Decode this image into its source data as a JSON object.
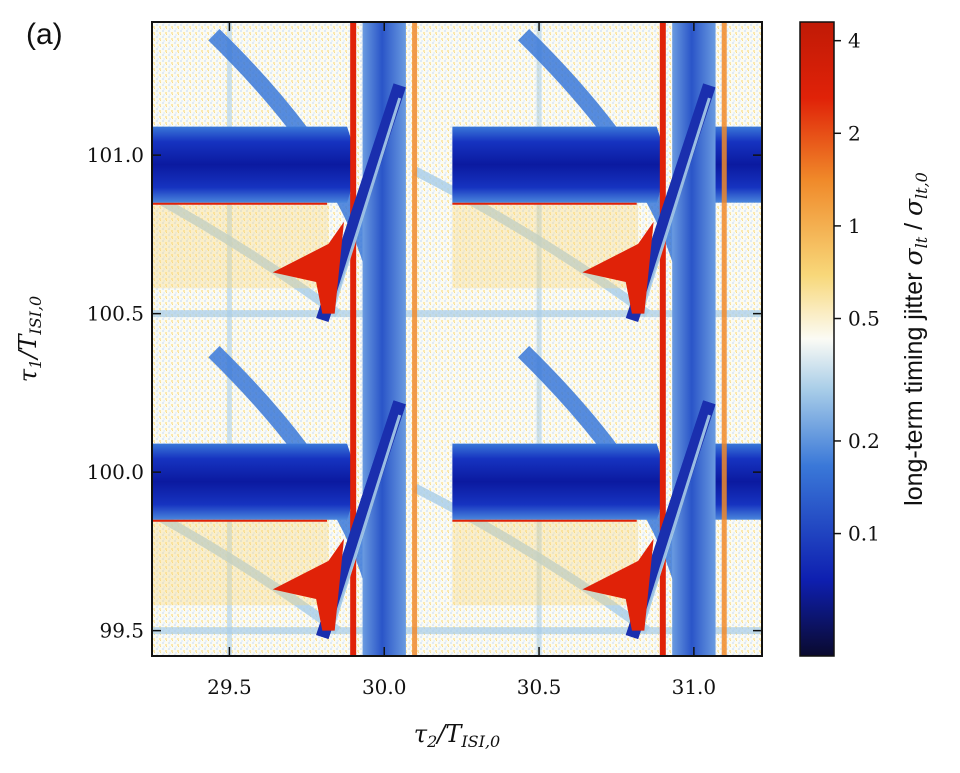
{
  "panel_label": "(a)",
  "chart_data": {
    "type": "heatmap",
    "x_var": "τ2/TISI,0",
    "y_var": "τ1/TISI,0",
    "xlim": [
      29.25,
      31.22
    ],
    "ylim": [
      99.42,
      101.42
    ],
    "x_ticks": [
      29.5,
      30.0,
      30.5,
      31.0
    ],
    "x_tick_labels": [
      "29.5",
      "30.0",
      "30.5",
      "31.0"
    ],
    "y_ticks": [
      99.5,
      100.0,
      100.5,
      101.0
    ],
    "y_tick_labels": [
      "99.5",
      "100.0",
      "100.5",
      "101.0"
    ],
    "xlabel": "τ₂/T_{ISI,0}",
    "ylabel": "τ₁/T_{ISI,0}",
    "colorbar": {
      "label": "long-term timing jitter σlt / σlt,0",
      "scale": "log",
      "range": [
        0.04,
        4.6
      ],
      "ticks": [
        4,
        2,
        1,
        0.5,
        0.2,
        0.1
      ],
      "tick_labels": [
        "4",
        "2",
        "1",
        "0.5",
        "0.2",
        "0.1"
      ]
    },
    "colors": {
      "low": "#0a0a2e",
      "deep_blue": "#0e1fb0",
      "mid_blue": "#3a78d8",
      "light_blue": "#a8cde8",
      "neutral": "#fbfbf5",
      "yellow": "#f8d87a",
      "orange": "#f08a2a",
      "red": "#e02208"
    }
  }
}
